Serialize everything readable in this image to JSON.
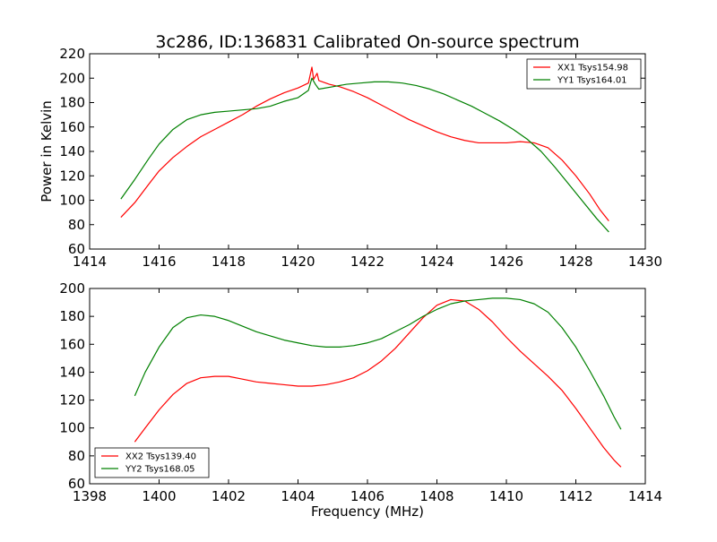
{
  "chart_data": [
    {
      "type": "line",
      "title": "3c286, ID:136831 Calibrated On-source spectrum",
      "ylabel": "Power in Kelvin",
      "xlabel": "",
      "xlim": [
        1414,
        1430
      ],
      "ylim": [
        60,
        220
      ],
      "xticks": [
        1414,
        1416,
        1418,
        1420,
        1422,
        1424,
        1426,
        1428,
        1430
      ],
      "yticks": [
        60,
        80,
        100,
        120,
        140,
        160,
        180,
        200,
        220
      ],
      "legend": "top-right",
      "grid": false,
      "series": [
        {
          "name": "XX1 Tsys154.98",
          "color": "#ff0000",
          "points": [
            [
              1414.9,
              86
            ],
            [
              1415.3,
              98
            ],
            [
              1415.7,
              113
            ],
            [
              1416.0,
              124
            ],
            [
              1416.4,
              135
            ],
            [
              1416.8,
              144
            ],
            [
              1417.2,
              152
            ],
            [
              1417.6,
              158
            ],
            [
              1418.0,
              164
            ],
            [
              1418.4,
              170
            ],
            [
              1418.8,
              177
            ],
            [
              1419.2,
              183
            ],
            [
              1419.6,
              188
            ],
            [
              1420.0,
              192
            ],
            [
              1420.3,
              196
            ],
            [
              1420.4,
              209
            ],
            [
              1420.45,
              199
            ],
            [
              1420.55,
              204
            ],
            [
              1420.6,
              198
            ],
            [
              1420.9,
              195
            ],
            [
              1421.2,
              193
            ],
            [
              1421.6,
              189
            ],
            [
              1422.0,
              184
            ],
            [
              1422.4,
              178
            ],
            [
              1422.8,
              172
            ],
            [
              1423.2,
              166
            ],
            [
              1423.6,
              161
            ],
            [
              1424.0,
              156
            ],
            [
              1424.4,
              152
            ],
            [
              1424.8,
              149
            ],
            [
              1425.2,
              147
            ],
            [
              1425.6,
              147
            ],
            [
              1426.0,
              147
            ],
            [
              1426.4,
              148
            ],
            [
              1426.8,
              147
            ],
            [
              1427.2,
              143
            ],
            [
              1427.6,
              133
            ],
            [
              1428.0,
              120
            ],
            [
              1428.4,
              105
            ],
            [
              1428.7,
              92
            ],
            [
              1428.95,
              83
            ]
          ]
        },
        {
          "name": "YY1 Tsys164.01",
          "color": "#008000",
          "points": [
            [
              1414.9,
              101
            ],
            [
              1415.3,
              117
            ],
            [
              1415.7,
              134
            ],
            [
              1416.0,
              146
            ],
            [
              1416.4,
              158
            ],
            [
              1416.8,
              166
            ],
            [
              1417.2,
              170
            ],
            [
              1417.6,
              172
            ],
            [
              1418.0,
              173
            ],
            [
              1418.4,
              174
            ],
            [
              1418.8,
              175
            ],
            [
              1419.2,
              177
            ],
            [
              1419.6,
              181
            ],
            [
              1420.0,
              184
            ],
            [
              1420.3,
              190
            ],
            [
              1420.4,
              200
            ],
            [
              1420.5,
              195
            ],
            [
              1420.6,
              191
            ],
            [
              1421.0,
              193
            ],
            [
              1421.4,
              195
            ],
            [
              1421.8,
              196
            ],
            [
              1422.2,
              197
            ],
            [
              1422.6,
              197
            ],
            [
              1423.0,
              196
            ],
            [
              1423.4,
              194
            ],
            [
              1423.8,
              191
            ],
            [
              1424.2,
              187
            ],
            [
              1424.6,
              182
            ],
            [
              1425.0,
              177
            ],
            [
              1425.4,
              171
            ],
            [
              1425.8,
              165
            ],
            [
              1426.2,
              158
            ],
            [
              1426.6,
              150
            ],
            [
              1427.0,
              140
            ],
            [
              1427.4,
              127
            ],
            [
              1427.8,
              113
            ],
            [
              1428.2,
              99
            ],
            [
              1428.6,
              85
            ],
            [
              1428.95,
              74
            ]
          ]
        }
      ]
    },
    {
      "type": "line",
      "title": "",
      "xlabel": "Frequency (MHz)",
      "ylabel": "",
      "xlim": [
        1398,
        1414
      ],
      "ylim": [
        60,
        200
      ],
      "xticks": [
        1398,
        1400,
        1402,
        1404,
        1406,
        1408,
        1410,
        1412,
        1414
      ],
      "yticks": [
        60,
        80,
        100,
        120,
        140,
        160,
        180,
        200
      ],
      "legend": "bottom-left",
      "grid": false,
      "series": [
        {
          "name": "XX2 Tsys139.40",
          "color": "#ff0000",
          "points": [
            [
              1399.3,
              90
            ],
            [
              1399.6,
              100
            ],
            [
              1400.0,
              113
            ],
            [
              1400.4,
              124
            ],
            [
              1400.8,
              132
            ],
            [
              1401.2,
              136
            ],
            [
              1401.6,
              137
            ],
            [
              1402.0,
              137
            ],
            [
              1402.4,
              135
            ],
            [
              1402.8,
              133
            ],
            [
              1403.2,
              132
            ],
            [
              1403.6,
              131
            ],
            [
              1404.0,
              130
            ],
            [
              1404.4,
              130
            ],
            [
              1404.8,
              131
            ],
            [
              1405.2,
              133
            ],
            [
              1405.6,
              136
            ],
            [
              1406.0,
              141
            ],
            [
              1406.4,
              148
            ],
            [
              1406.8,
              157
            ],
            [
              1407.2,
              168
            ],
            [
              1407.6,
              179
            ],
            [
              1408.0,
              188
            ],
            [
              1408.4,
              192
            ],
            [
              1408.8,
              191
            ],
            [
              1409.2,
              185
            ],
            [
              1409.6,
              176
            ],
            [
              1410.0,
              165
            ],
            [
              1410.4,
              155
            ],
            [
              1410.8,
              146
            ],
            [
              1411.2,
              137
            ],
            [
              1411.6,
              127
            ],
            [
              1412.0,
              114
            ],
            [
              1412.4,
              100
            ],
            [
              1412.8,
              86
            ],
            [
              1413.1,
              77
            ],
            [
              1413.3,
              72
            ]
          ]
        },
        {
          "name": "YY2 Tsys168.05",
          "color": "#008000",
          "points": [
            [
              1399.3,
              123
            ],
            [
              1399.6,
              140
            ],
            [
              1400.0,
              158
            ],
            [
              1400.4,
              172
            ],
            [
              1400.8,
              179
            ],
            [
              1401.2,
              181
            ],
            [
              1401.6,
              180
            ],
            [
              1402.0,
              177
            ],
            [
              1402.4,
              173
            ],
            [
              1402.8,
              169
            ],
            [
              1403.2,
              166
            ],
            [
              1403.6,
              163
            ],
            [
              1404.0,
              161
            ],
            [
              1404.4,
              159
            ],
            [
              1404.8,
              158
            ],
            [
              1405.2,
              158
            ],
            [
              1405.6,
              159
            ],
            [
              1406.0,
              161
            ],
            [
              1406.4,
              164
            ],
            [
              1406.8,
              169
            ],
            [
              1407.2,
              174
            ],
            [
              1407.6,
              180
            ],
            [
              1408.0,
              185
            ],
            [
              1408.4,
              189
            ],
            [
              1408.8,
              191
            ],
            [
              1409.2,
              192
            ],
            [
              1409.6,
              193
            ],
            [
              1410.0,
              193
            ],
            [
              1410.4,
              192
            ],
            [
              1410.8,
              189
            ],
            [
              1411.2,
              183
            ],
            [
              1411.6,
              172
            ],
            [
              1412.0,
              158
            ],
            [
              1412.4,
              141
            ],
            [
              1412.8,
              123
            ],
            [
              1413.1,
              108
            ],
            [
              1413.3,
              99
            ]
          ]
        }
      ]
    }
  ]
}
